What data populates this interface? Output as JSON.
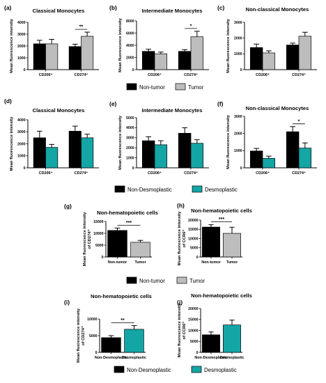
{
  "colors": {
    "black": "#000000",
    "gray": "#bdbdbd",
    "teal": "#14a5a5"
  },
  "legends": [
    {
      "items": [
        {
          "label": "Non-tumor",
          "color": "#000000"
        },
        {
          "label": "Tumor",
          "color": "#bdbdbd"
        }
      ]
    },
    {
      "items": [
        {
          "label": "Non-Desmoplastic",
          "color": "#000000"
        },
        {
          "label": "Desmoplastic",
          "color": "#14a5a5"
        }
      ]
    },
    {
      "items": [
        {
          "label": "Non-tumor",
          "color": "#000000"
        },
        {
          "label": "Tumor",
          "color": "#bdbdbd"
        }
      ]
    },
    {
      "items": [
        {
          "label": "Non-Desmoplastic",
          "color": "#000000"
        },
        {
          "label": "Desmoplastic",
          "color": "#14a5a5"
        }
      ]
    }
  ],
  "chart_data": [
    {
      "panel": "(a)",
      "type": "bar",
      "title": "Classical Monocytes",
      "ylabel": "Mean fluorescence intensity",
      "ylim": [
        0,
        4000
      ],
      "yticks": [
        "0",
        "1000",
        "2000",
        "3000",
        "4000"
      ],
      "groups": [
        "CD206⁺",
        "CD274⁺"
      ],
      "series": [
        {
          "color": "#000000",
          "values": [
            2180,
            1950
          ],
          "errors": [
            300,
            200
          ]
        },
        {
          "color": "#bdbdbd",
          "values": [
            2180,
            2820
          ],
          "errors": [
            380,
            350
          ]
        }
      ],
      "significance": [
        {
          "group": 1,
          "label": "**"
        }
      ]
    },
    {
      "panel": "(b)",
      "type": "bar",
      "title": "Intermediate Monocytes",
      "ylabel": "Mean fluorescence intensity",
      "ylim": [
        0,
        8000
      ],
      "yticks": [
        "0",
        "2000",
        "4000",
        "6000",
        "8000"
      ],
      "groups": [
        "CD206⁺",
        "CD274⁺"
      ],
      "series": [
        {
          "color": "#000000",
          "values": [
            3000,
            3000
          ],
          "errors": [
            350,
            280
          ]
        },
        {
          "color": "#bdbdbd",
          "values": [
            2600,
            5400
          ],
          "errors": [
            280,
            900
          ]
        }
      ],
      "significance": [
        {
          "group": 1,
          "label": "*"
        }
      ]
    },
    {
      "panel": "(c)",
      "type": "bar",
      "title": "Non-classical Monocytes",
      "ylabel": "Mean fluorescence intensity",
      "ylim": [
        0,
        3000
      ],
      "yticks": [
        "0",
        "1000",
        "2000",
        "3000"
      ],
      "groups": [
        "CD206⁺",
        "CD274⁺"
      ],
      "series": [
        {
          "color": "#000000",
          "values": [
            1400,
            1560
          ],
          "errors": [
            220,
            120
          ]
        },
        {
          "color": "#bdbdbd",
          "values": [
            1060,
            2120
          ],
          "errors": [
            130,
            250
          ]
        }
      ],
      "significance": []
    },
    {
      "panel": "(d)",
      "type": "bar",
      "title": "Classical Monocytes",
      "ylabel": "Mean fluorescence intensity",
      "ylim": [
        0,
        4000
      ],
      "yticks": [
        "0",
        "1000",
        "2000",
        "3000",
        "4000"
      ],
      "groups": [
        "CD206⁺",
        "CD274⁺"
      ],
      "series": [
        {
          "color": "#000000",
          "values": [
            2500,
            3050
          ],
          "errors": [
            550,
            420
          ]
        },
        {
          "color": "#14a5a5",
          "values": [
            1700,
            2500
          ],
          "errors": [
            250,
            300
          ]
        }
      ],
      "significance": []
    },
    {
      "panel": "(e)",
      "type": "bar",
      "title": "Intermediate Monocytes",
      "ylabel": "Mean fluorescence intensity",
      "ylim": [
        0,
        5000
      ],
      "yticks": [
        "0",
        "1000",
        "2000",
        "3000",
        "4000",
        "5000"
      ],
      "groups": [
        "CD206⁺",
        "CD274⁺"
      ],
      "series": [
        {
          "color": "#000000",
          "values": [
            2700,
            3450
          ],
          "errors": [
            400,
            550
          ]
        },
        {
          "color": "#14a5a5",
          "values": [
            2300,
            2450
          ],
          "errors": [
            400,
            350
          ]
        }
      ],
      "significance": []
    },
    {
      "panel": "(f)",
      "type": "bar",
      "title": "Non-classical Monocytes",
      "ylabel": "Mean fluorescence intensity",
      "ylim": [
        0,
        3000
      ],
      "yticks": [
        "0",
        "1000",
        "2000",
        "3000"
      ],
      "groups": [
        "CD206⁺",
        "CD274⁺"
      ],
      "series": [
        {
          "color": "#000000",
          "values": [
            980,
            2100
          ],
          "errors": [
            150,
            300
          ]
        },
        {
          "color": "#14a5a5",
          "values": [
            550,
            1150
          ],
          "errors": [
            130,
            300
          ]
        }
      ],
      "significance": [
        {
          "group": 1,
          "label": "*"
        }
      ]
    },
    {
      "panel": "(g)",
      "type": "bar",
      "title": "Non-hematopoietic cells",
      "ylabel": [
        "Mean fluorescence intensity",
        "of CD274⁺"
      ],
      "ylim": [
        0,
        15000
      ],
      "yticks": [
        "0",
        "5000",
        "10000",
        "15000"
      ],
      "categories": [
        "Non-tumor",
        "Tumor"
      ],
      "values": [
        11200,
        6200
      ],
      "errors": [
        1000,
        800
      ],
      "colors": [
        "#000000",
        "#bdbdbd"
      ],
      "significance": [
        {
          "label": "***"
        }
      ]
    },
    {
      "panel": "(h)",
      "type": "bar",
      "title": "Non-hematopoietic cells",
      "ylabel": [
        "Mean fluorescence intensity",
        "of CCR6⁺"
      ],
      "ylim": [
        0,
        20000
      ],
      "yticks": [
        "0",
        "5000",
        "10000",
        "15000",
        "20000"
      ],
      "categories": [
        "Non-tumor",
        "Tumor"
      ],
      "values": [
        16200,
        12800
      ],
      "errors": [
        1300,
        3300
      ],
      "colors": [
        "#000000",
        "#bdbdbd"
      ],
      "significance": [
        {
          "label": "***"
        }
      ]
    },
    {
      "panel": "(i)",
      "type": "bar",
      "title": "Non-hematopoietic cells",
      "ylabel": [
        "Mean fluorescence intensity",
        "of CD274⁺"
      ],
      "ylim": [
        0,
        10000
      ],
      "yticks": [
        "0",
        "5000",
        "10000"
      ],
      "categories": [
        "Non-Desmoplastic",
        "Desmoplastic"
      ],
      "values": [
        4400,
        6900
      ],
      "errors": [
        600,
        1100
      ],
      "colors": [
        "#000000",
        "#14a5a5"
      ],
      "significance": [
        {
          "label": "**"
        }
      ]
    },
    {
      "panel": "(j)",
      "type": "bar",
      "title": "Non-hematopoietic cells",
      "ylabel": [
        "Mean fluorescence intensity",
        "of CCR6⁺"
      ],
      "ylim": [
        0,
        20000
      ],
      "yticks": [
        "0",
        "5000",
        "10000",
        "15000",
        "20000"
      ],
      "categories": [
        "Non-Desmoplastic",
        "Desmoplastic"
      ],
      "values": [
        8000,
        12500
      ],
      "errors": [
        1300,
        2200
      ],
      "colors": [
        "#000000",
        "#14a5a5"
      ],
      "significance": []
    }
  ]
}
